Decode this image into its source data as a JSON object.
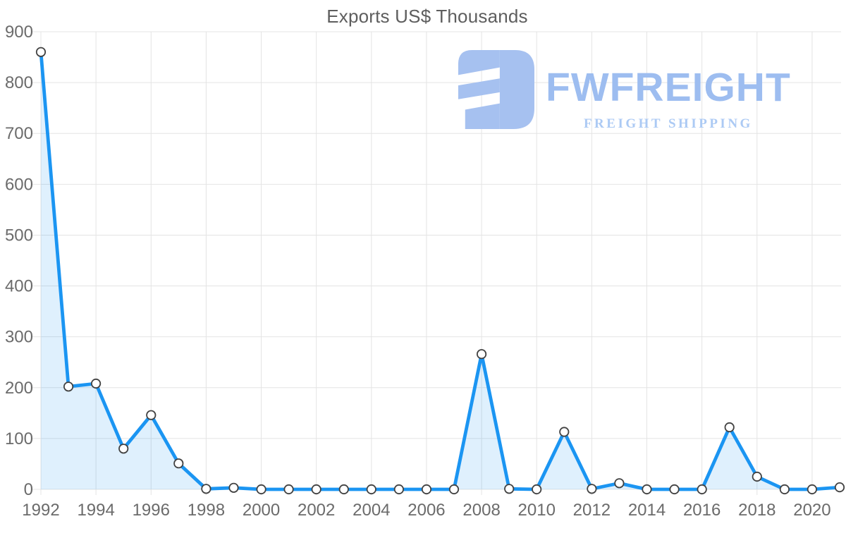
{
  "title": {
    "text": "Exports US$ Thousands"
  },
  "logo": {
    "brand": "FWFREIGHT",
    "tagline": "FREIGHT SHIPPING",
    "mark_color": "#a6c1f0",
    "brand_color": "#9dbdf0",
    "tagline_color": "#accaf4"
  },
  "chart_data": {
    "type": "area",
    "title": "Exports US$ Thousands",
    "xlabel": "",
    "ylabel": "",
    "x": [
      1992,
      1993,
      1994,
      1995,
      1996,
      1997,
      1998,
      1999,
      2000,
      2001,
      2002,
      2003,
      2004,
      2005,
      2006,
      2007,
      2008,
      2009,
      2010,
      2011,
      2012,
      2013,
      2014,
      2015,
      2016,
      2017,
      2018,
      2019,
      2020,
      2021
    ],
    "values": [
      860,
      202,
      208,
      80,
      146,
      51,
      1,
      3,
      0,
      0,
      0,
      0,
      0,
      0,
      0,
      0,
      266,
      1,
      0,
      113,
      1,
      12,
      0,
      0,
      0,
      122,
      25,
      0,
      0,
      4
    ],
    "ylim": [
      0,
      900
    ],
    "yticks": [
      0,
      100,
      200,
      300,
      400,
      500,
      600,
      700,
      800,
      900
    ],
    "xticks": [
      1992,
      1994,
      1996,
      1998,
      2000,
      2002,
      2004,
      2006,
      2008,
      2010,
      2012,
      2014,
      2016,
      2018,
      2020
    ],
    "grid": true,
    "legend": false,
    "line_color": "#1b95f2",
    "fill_opacity": 0.14,
    "marker_fill": "#ffffff",
    "marker_stroke": "#424242",
    "gridline_color": "#e4e4e4",
    "label_color": "#6b6b6b"
  }
}
